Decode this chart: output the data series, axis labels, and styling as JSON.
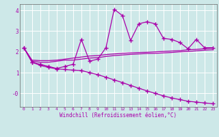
{
  "xlabel": "Windchill (Refroidissement éolien,°C)",
  "xlim": [
    -0.5,
    23.5
  ],
  "ylim": [
    -0.65,
    4.3
  ],
  "xticks": [
    0,
    1,
    2,
    3,
    4,
    5,
    6,
    7,
    8,
    9,
    10,
    11,
    12,
    13,
    14,
    15,
    16,
    17,
    18,
    19,
    20,
    21,
    22,
    23
  ],
  "yticks": [
    0,
    1,
    2,
    3,
    4
  ],
  "ytick_labels": [
    "-0",
    "1",
    "2",
    "3",
    "4"
  ],
  "bg_color": "#cde8e8",
  "line_color": "#aa00aa",
  "grid_color": "#ffffff",
  "line1_x": [
    0,
    1,
    2,
    3,
    4,
    5,
    6,
    7,
    8,
    9,
    10,
    11,
    12,
    13,
    14,
    15,
    16,
    17,
    18,
    19,
    20,
    21,
    22,
    23
  ],
  "line1_y": [
    2.2,
    1.5,
    1.4,
    1.3,
    1.2,
    1.3,
    1.4,
    2.6,
    1.55,
    1.65,
    2.2,
    4.05,
    3.75,
    2.55,
    3.35,
    3.45,
    3.35,
    2.65,
    2.6,
    2.45,
    2.15,
    2.6,
    2.2,
    2.2
  ],
  "line2_x": [
    0,
    1,
    2,
    3,
    4,
    5,
    6,
    7,
    8,
    9,
    10,
    11,
    12,
    13,
    14,
    15,
    16,
    17,
    18,
    19,
    20,
    21,
    22,
    23
  ],
  "line2_y": [
    2.2,
    1.55,
    1.5,
    1.5,
    1.55,
    1.6,
    1.6,
    1.65,
    1.7,
    1.72,
    1.78,
    1.82,
    1.85,
    1.88,
    1.9,
    1.92,
    1.93,
    1.95,
    1.97,
    2.0,
    2.02,
    2.05,
    2.08,
    2.1
  ],
  "line3_x": [
    0,
    1,
    2,
    3,
    4,
    5,
    6,
    7,
    8,
    9,
    10,
    11,
    12,
    13,
    14,
    15,
    16,
    17,
    18,
    19,
    20,
    21,
    22,
    23
  ],
  "line3_y": [
    2.2,
    1.6,
    1.58,
    1.58,
    1.6,
    1.65,
    1.7,
    1.75,
    1.8,
    1.82,
    1.87,
    1.9,
    1.93,
    1.95,
    1.97,
    1.98,
    2.0,
    2.02,
    2.04,
    2.06,
    2.1,
    2.12,
    2.15,
    2.18
  ],
  "line4_x": [
    0,
    1,
    2,
    3,
    4,
    5,
    6,
    7,
    8,
    9,
    10,
    11,
    12,
    13,
    14,
    15,
    16,
    17,
    18,
    19,
    20,
    21,
    22,
    23
  ],
  "line4_y": [
    2.2,
    1.5,
    1.35,
    1.25,
    1.18,
    1.15,
    1.12,
    1.1,
    1.0,
    0.9,
    0.78,
    0.65,
    0.52,
    0.38,
    0.25,
    0.12,
    0.0,
    -0.12,
    -0.22,
    -0.3,
    -0.38,
    -0.42,
    -0.46,
    -0.5
  ]
}
